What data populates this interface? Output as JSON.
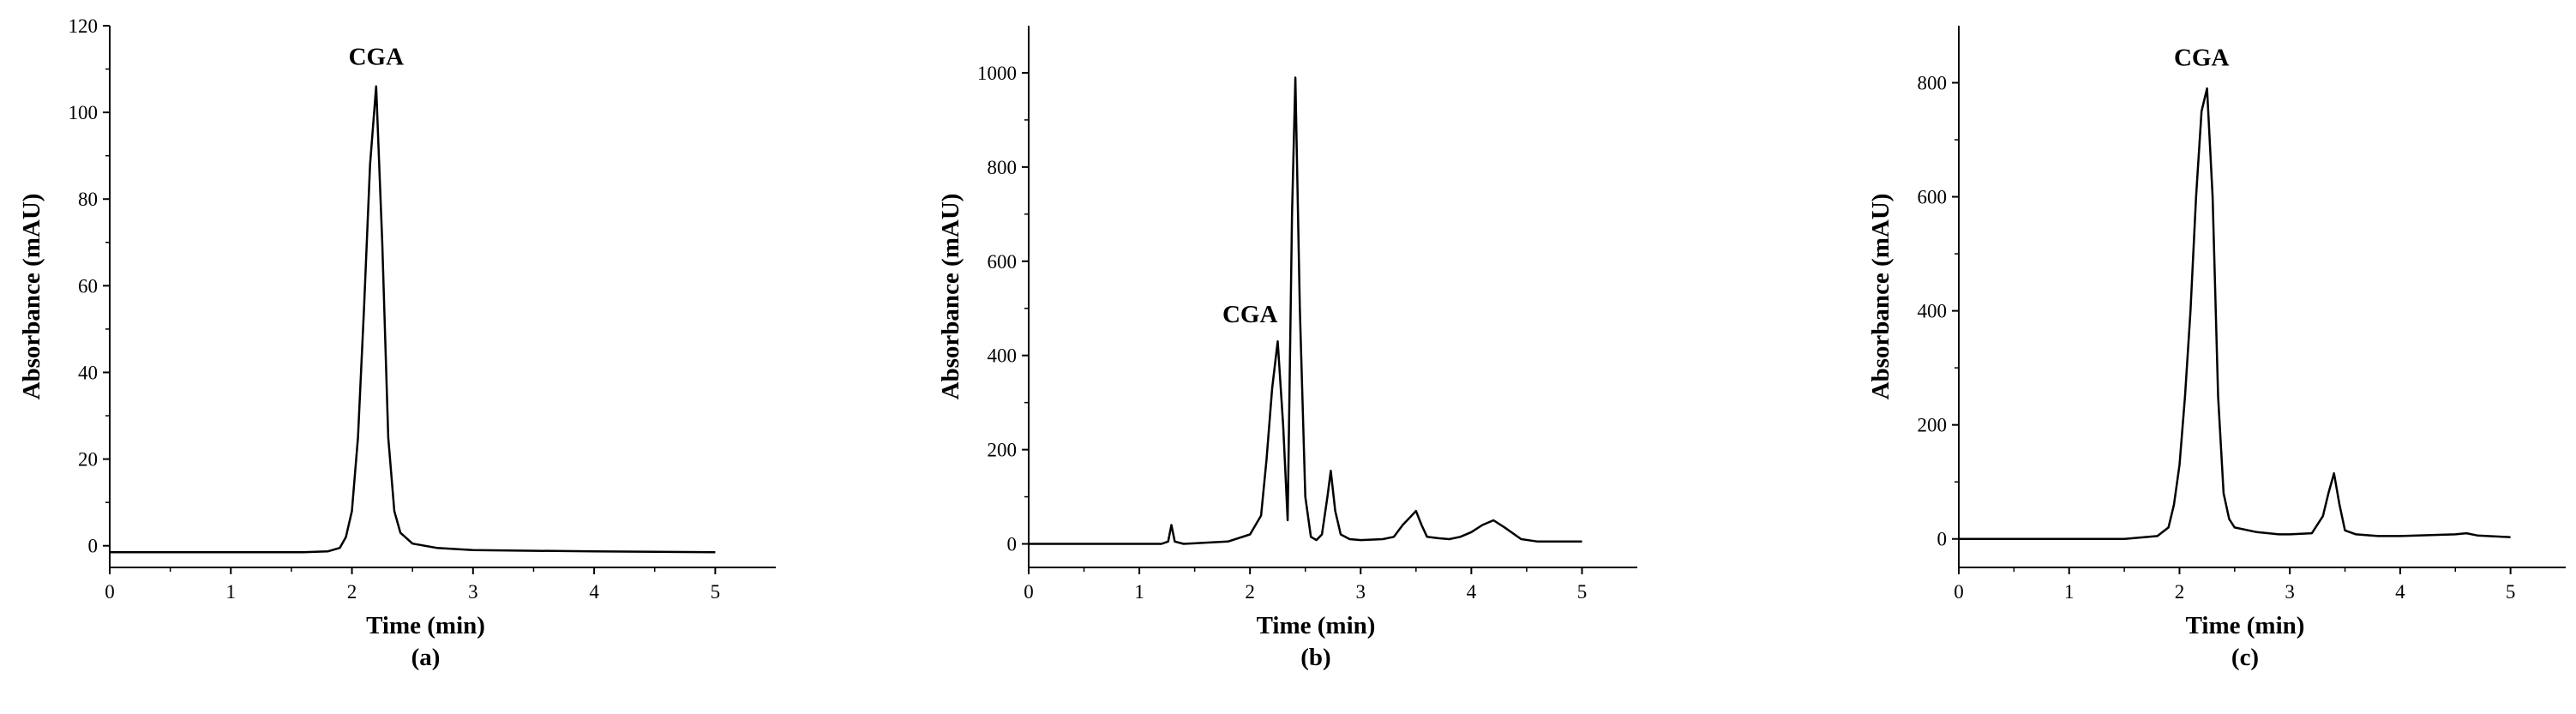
{
  "chart_data": [
    {
      "type": "line",
      "panel_label": "(a)",
      "xlabel": "Time (min)",
      "ylabel": "Absorbance (mAU)",
      "xlim": [
        0,
        5.5
      ],
      "ylim": [
        -5,
        120
      ],
      "xticks": [
        0,
        1,
        2,
        3,
        4,
        5
      ],
      "yticks": [
        0,
        20,
        40,
        60,
        80,
        100,
        120
      ],
      "annotations": [
        {
          "text": "CGA",
          "x": 2.2,
          "y": 111
        }
      ],
      "series": [
        {
          "x": [
            0,
            1.0,
            1.6,
            1.8,
            1.9,
            1.95,
            2.0,
            2.05,
            2.1,
            2.15,
            2.2,
            2.25,
            2.3,
            2.35,
            2.4,
            2.5,
            2.7,
            3.0,
            4.0,
            5.0
          ],
          "y": [
            -1.5,
            -1.5,
            -1.5,
            -1.3,
            -0.5,
            2,
            8,
            25,
            55,
            88,
            106,
            70,
            25,
            8,
            3,
            0.5,
            -0.5,
            -1,
            -1.3,
            -1.5
          ]
        }
      ]
    },
    {
      "type": "line",
      "panel_label": "(b)",
      "xlabel": "Time (min)",
      "ylabel": "Absorbance (mAU)",
      "xlim": [
        0,
        5.5
      ],
      "ylim": [
        -50,
        1100
      ],
      "xticks": [
        0,
        1,
        2,
        3,
        4,
        5
      ],
      "yticks": [
        0,
        200,
        400,
        600,
        800,
        1000
      ],
      "annotations": [
        {
          "text": "CGA",
          "x": 2.0,
          "y": 470
        }
      ],
      "series": [
        {
          "x": [
            0,
            1.2,
            1.26,
            1.29,
            1.32,
            1.4,
            1.8,
            2.0,
            2.1,
            2.15,
            2.2,
            2.25,
            2.3,
            2.34,
            2.38,
            2.41,
            2.45,
            2.5,
            2.55,
            2.6,
            2.65,
            2.7,
            2.73,
            2.77,
            2.82,
            2.9,
            3.0,
            3.2,
            3.3,
            3.38,
            3.44,
            3.5,
            3.55,
            3.6,
            3.7,
            3.8,
            3.9,
            4.0,
            4.1,
            4.2,
            4.3,
            4.45,
            4.6,
            5.0
          ],
          "y": [
            0,
            0,
            5,
            40,
            5,
            0,
            5,
            20,
            60,
            180,
            330,
            430,
            250,
            50,
            700,
            990,
            500,
            100,
            15,
            8,
            20,
            100,
            155,
            70,
            20,
            10,
            8,
            10,
            15,
            40,
            55,
            70,
            40,
            15,
            12,
            10,
            15,
            25,
            40,
            50,
            35,
            10,
            5,
            5
          ]
        }
      ]
    },
    {
      "type": "line",
      "panel_label": "(c)",
      "xlabel": "Time (min)",
      "ylabel": "Absorbance (mAU)",
      "xlim": [
        0,
        5.5
      ],
      "ylim": [
        -50,
        900
      ],
      "xticks": [
        0,
        1,
        2,
        3,
        4,
        5
      ],
      "yticks": [
        0,
        200,
        400,
        600,
        800
      ],
      "annotations": [
        {
          "text": "CGA",
          "x": 2.2,
          "y": 830
        }
      ],
      "series": [
        {
          "x": [
            0,
            1.5,
            1.8,
            1.9,
            1.95,
            2.0,
            2.05,
            2.1,
            2.15,
            2.2,
            2.25,
            2.3,
            2.35,
            2.4,
            2.45,
            2.5,
            2.7,
            2.9,
            3.0,
            3.2,
            3.3,
            3.35,
            3.4,
            3.45,
            3.5,
            3.6,
            3.8,
            4.0,
            4.5,
            4.6,
            4.7,
            5.0
          ],
          "y": [
            0,
            0,
            5,
            20,
            60,
            130,
            250,
            400,
            600,
            750,
            790,
            600,
            250,
            80,
            35,
            20,
            12,
            8,
            8,
            10,
            40,
            80,
            115,
            60,
            15,
            8,
            5,
            5,
            8,
            10,
            6,
            3
          ]
        }
      ]
    }
  ]
}
